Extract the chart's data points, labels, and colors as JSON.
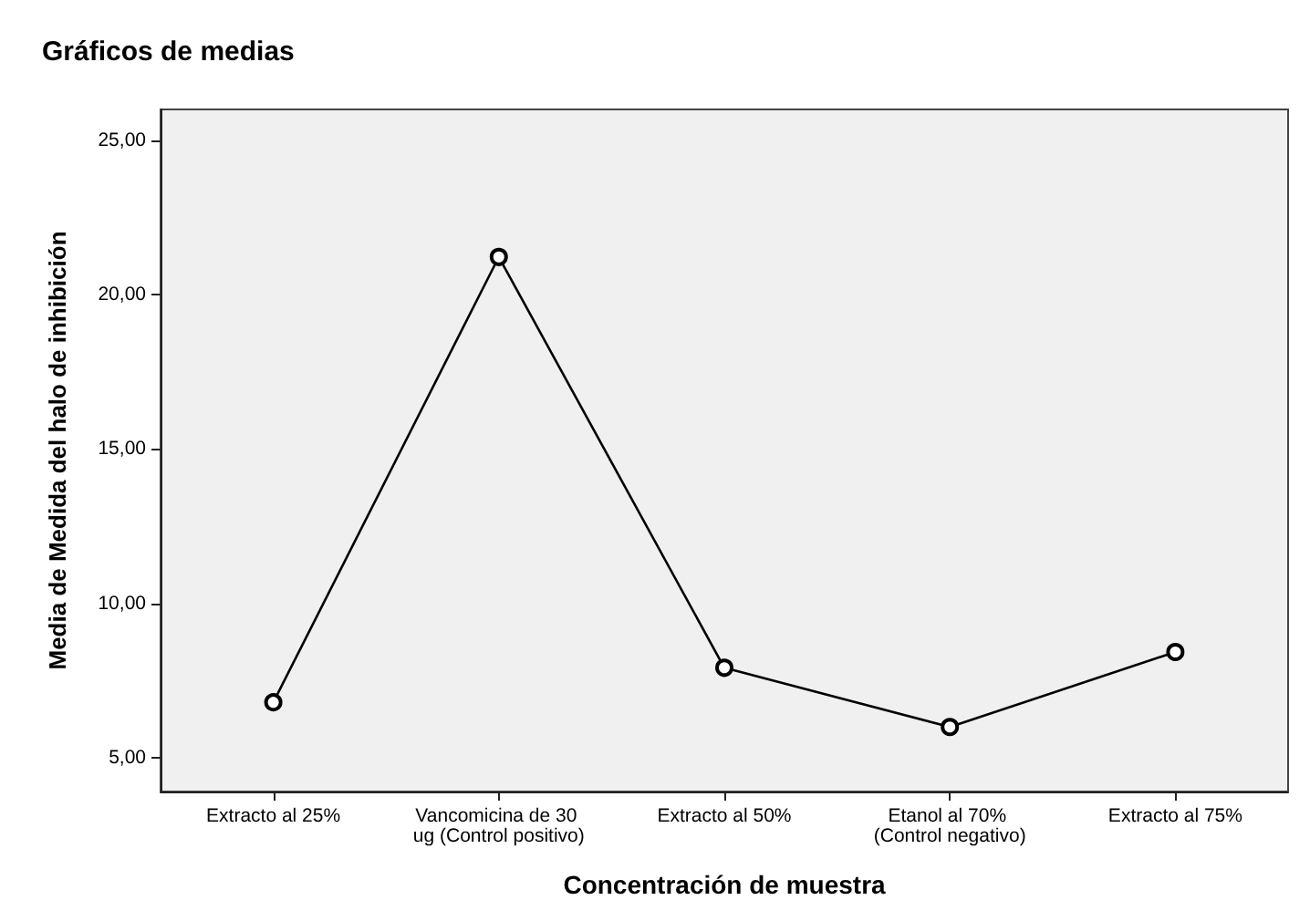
{
  "chart_data": {
    "type": "line",
    "title": "Gráficos de medias",
    "xlabel": "Concentración de muestra",
    "ylabel": "Media de Medida del halo de inhibición",
    "categories": [
      "Extracto al 25%",
      "Vancomicina de 30 ug (Control positivo)",
      "Extracto al 50%",
      "Etanol al 70% (Control negativo)",
      "Extracto al 75%"
    ],
    "series": [
      {
        "color": "#000000",
        "values": [
          6.79,
          21.22,
          7.91,
          5.99,
          8.42
        ]
      }
    ],
    "ylim": [
      3.9,
      26.0
    ],
    "yticks": [
      {
        "value": 5,
        "label": "5,00"
      },
      {
        "value": 10,
        "label": "10,00"
      },
      {
        "value": 15,
        "label": "15,00"
      },
      {
        "value": 20,
        "label": "20,00"
      },
      {
        "value": 25,
        "label": "25,00"
      }
    ],
    "grid": false,
    "marker": "circle",
    "line_style": "solid"
  }
}
